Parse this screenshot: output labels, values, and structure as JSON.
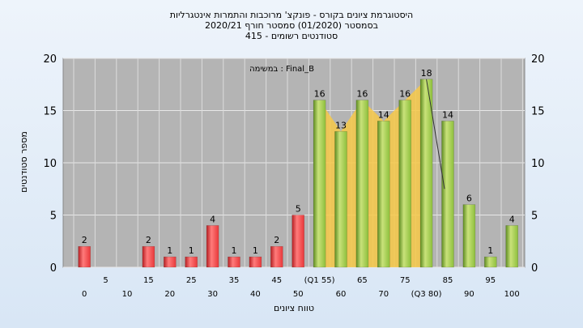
{
  "chart_data": {
    "type": "bar",
    "title_lines": [
      "היסטוגרמת ציונים בקורס - פונקצ' מרוכבות והתמרות אינטגרליות",
      "בסמסטר  (01/2020)  סמסטר חורף  2020/21",
      "סטודנטים רשומים - 415"
    ],
    "annotation": "במשימה : Final_B",
    "xlabel": "טווח ציונים",
    "ylabel": "מספר סטודנטים",
    "ylim": [
      0,
      20
    ],
    "yticks": [
      0,
      5,
      10,
      15,
      20
    ],
    "grid": true,
    "categories": [
      0,
      5,
      10,
      15,
      20,
      25,
      30,
      35,
      40,
      45,
      50,
      55,
      60,
      65,
      70,
      75,
      80,
      85,
      90,
      95,
      100
    ],
    "x_tick_labels": [
      "0",
      "5",
      "10",
      "15",
      "20",
      "25",
      "30",
      "35",
      "40",
      "45",
      "50",
      "(Q1 55)",
      "60",
      "65",
      "70",
      "75",
      "(Q3 80)",
      "85",
      "90",
      "95",
      "100"
    ],
    "values": [
      2,
      0,
      0,
      2,
      1,
      1,
      4,
      1,
      1,
      2,
      5,
      16,
      13,
      16,
      14,
      16,
      18,
      14,
      6,
      1,
      4
    ],
    "value_labels": [
      "2",
      "",
      "",
      "2",
      "1",
      "1",
      "4",
      "1",
      "1",
      "2",
      "5",
      "16",
      "13",
      "16",
      "14",
      "16",
      "18",
      "14",
      "6",
      "1",
      "4"
    ],
    "highlight_range": {
      "from": "55",
      "to": "80"
    },
    "colors": {
      "fail_bar": "#e8383a",
      "pass_bar": "#8dbf3c",
      "highlight": "#f7c948",
      "plot_bg": "#b4b4b4",
      "page_bg": "#dde9f6"
    }
  }
}
